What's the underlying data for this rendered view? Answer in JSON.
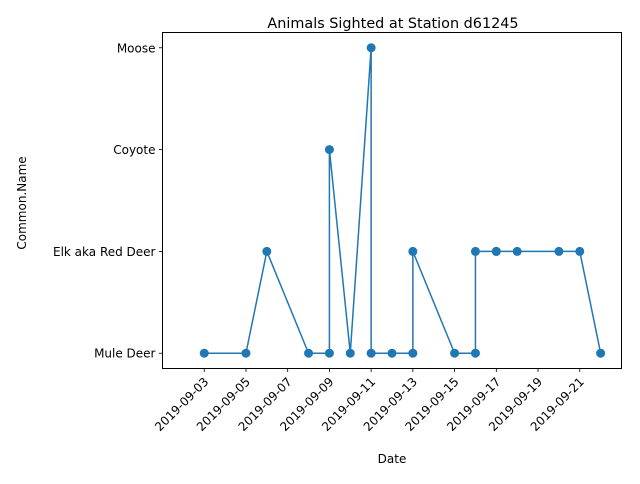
{
  "chart_data": {
    "type": "line",
    "title": "Animals Sighted at Station d61245",
    "xlabel": "Date",
    "ylabel": "Common.Name",
    "categories": [
      "Mule Deer",
      "Elk aka Red Deer",
      "Coyote",
      "Moose"
    ],
    "x_ticks": [
      "2019-09-03",
      "2019-09-05",
      "2019-09-07",
      "2019-09-09",
      "2019-09-11",
      "2019-09-13",
      "2019-09-15",
      "2019-09-17",
      "2019-09-19",
      "2019-09-21"
    ],
    "xlim": [
      "2019-09-02",
      "2019-09-22"
    ],
    "grid": false,
    "color": "#1f77b4",
    "marker": "circle",
    "points": [
      {
        "x": "2019-09-03",
        "y": "Mule Deer"
      },
      {
        "x": "2019-09-05",
        "y": "Mule Deer"
      },
      {
        "x": "2019-09-06",
        "y": "Elk aka Red Deer"
      },
      {
        "x": "2019-09-08",
        "y": "Mule Deer"
      },
      {
        "x": "2019-09-09",
        "y": "Mule Deer"
      },
      {
        "x": "2019-09-09",
        "y": "Coyote"
      },
      {
        "x": "2019-09-10",
        "y": "Mule Deer"
      },
      {
        "x": "2019-09-11",
        "y": "Moose"
      },
      {
        "x": "2019-09-11",
        "y": "Mule Deer"
      },
      {
        "x": "2019-09-12",
        "y": "Mule Deer"
      },
      {
        "x": "2019-09-13",
        "y": "Mule Deer"
      },
      {
        "x": "2019-09-13",
        "y": "Elk aka Red Deer"
      },
      {
        "x": "2019-09-15",
        "y": "Mule Deer"
      },
      {
        "x": "2019-09-16",
        "y": "Mule Deer"
      },
      {
        "x": "2019-09-16",
        "y": "Elk aka Red Deer"
      },
      {
        "x": "2019-09-17",
        "y": "Elk aka Red Deer"
      },
      {
        "x": "2019-09-17",
        "y": "Elk aka Red Deer"
      },
      {
        "x": "2019-09-18",
        "y": "Elk aka Red Deer"
      },
      {
        "x": "2019-09-20",
        "y": "Elk aka Red Deer"
      },
      {
        "x": "2019-09-21",
        "y": "Elk aka Red Deer"
      },
      {
        "x": "2019-09-22",
        "y": "Mule Deer"
      }
    ]
  }
}
